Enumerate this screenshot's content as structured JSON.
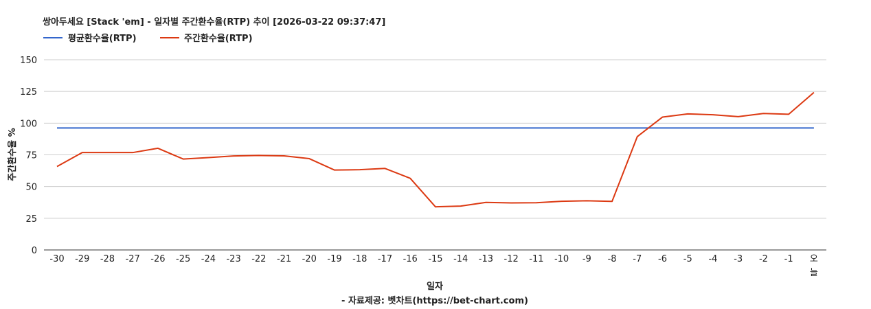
{
  "chart_data": {
    "type": "line",
    "title": "쌍아두세요 [Stack 'em] - 일자별 주간환수율(RTP) 추이 [2026-03-22 09:37:47]",
    "xlabel": "일자",
    "ylabel": "주간환수율 %",
    "source": "- 자료제공: 벳차트(https://bet-chart.com)",
    "categories": [
      "-30",
      "-29",
      "-28",
      "-27",
      "-26",
      "-25",
      "-24",
      "-23",
      "-22",
      "-21",
      "-20",
      "-19",
      "-18",
      "-17",
      "-16",
      "-15",
      "-14",
      "-13",
      "-12",
      "-11",
      "-10",
      "-9",
      "-8",
      "-7",
      "-6",
      "-5",
      "-4",
      "-3",
      "-2",
      "-1",
      "오늘"
    ],
    "y_ticks": [
      "0",
      "25",
      "50",
      "75",
      "100",
      "125",
      "150"
    ],
    "ylim": [
      0,
      150
    ],
    "grid": true,
    "legend_position": "top-left",
    "series": [
      {
        "name": "평균환수율(RTP)",
        "color": "#3366cc",
        "values": [
          96.2,
          96.2,
          96.2,
          96.2,
          96.2,
          96.2,
          96.2,
          96.2,
          96.2,
          96.2,
          96.2,
          96.2,
          96.2,
          96.2,
          96.2,
          96.2,
          96.2,
          96.2,
          96.2,
          96.2,
          96.2,
          96.2,
          96.2,
          96.2,
          96.2,
          96.2,
          96.2,
          96.2,
          96.2,
          96.2,
          96.2
        ]
      },
      {
        "name": "주간환수율(RTP)",
        "color": "#dc3912",
        "values": [
          65.8,
          76.8,
          76.8,
          76.8,
          80.2,
          71.7,
          72.8,
          74.1,
          74.5,
          74.2,
          72.0,
          63.0,
          63.3,
          64.3,
          56.5,
          34.0,
          34.6,
          37.5,
          37.1,
          37.2,
          38.4,
          38.8,
          38.3,
          89.4,
          104.8,
          107.3,
          106.6,
          105.1,
          107.6,
          107.0,
          124.2
        ]
      }
    ]
  },
  "colors": {
    "grid": "#cccccc",
    "baseline": "#333333",
    "text": "#222222"
  }
}
